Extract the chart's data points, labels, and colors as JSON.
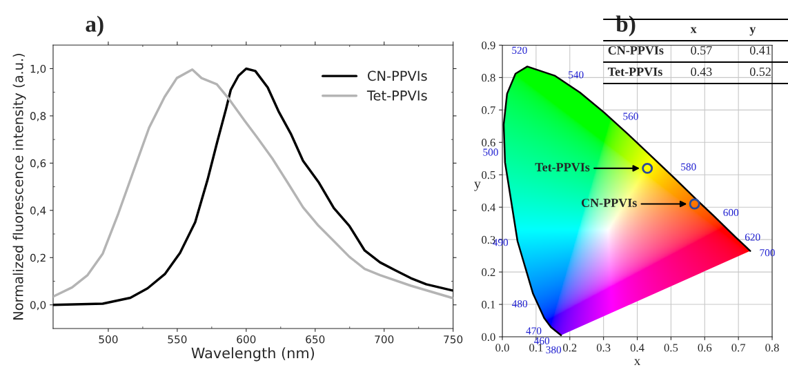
{
  "chart_data": [
    {
      "type": "line",
      "title": "a)",
      "xlabel": "Wavelength (nm)",
      "ylabel": "Normalized fluorescence intensity (a.u.)",
      "xlim": [
        460,
        750
      ],
      "ylim": [
        -0.1,
        1.1
      ],
      "xticks": [
        500,
        550,
        600,
        650,
        700,
        750
      ],
      "yticks": [
        {
          "value": 0,
          "label": "0,0"
        },
        {
          "value": 0.2,
          "label": "0,2"
        },
        {
          "value": 0.4,
          "label": "0,4"
        },
        {
          "value": 0.6,
          "label": "0,6"
        },
        {
          "value": 0.8,
          "label": "0,8"
        },
        {
          "value": 1.0,
          "label": "1,0"
        }
      ],
      "grid": false,
      "legend": "top right",
      "series": [
        {
          "name": "CN-PPVIs",
          "color": "#000000",
          "x": [
            460,
            496,
            516,
            528.5,
            541,
            552,
            563,
            572,
            579,
            585.4,
            588.8,
            594.4,
            600,
            606.6,
            615.6,
            623.4,
            632.3,
            641.2,
            652.4,
            663.5,
            674.7,
            685.9,
            697,
            708.2,
            719.4,
            730.5,
            749.5
          ],
          "values": [
            0.0,
            0.005,
            0.03,
            0.07,
            0.13,
            0.22,
            0.35,
            0.53,
            0.69,
            0.83,
            0.91,
            0.97,
            1.0,
            0.99,
            0.92,
            0.82,
            0.725,
            0.61,
            0.52,
            0.41,
            0.335,
            0.23,
            0.18,
            0.146,
            0.113,
            0.087,
            0.061
          ]
        },
        {
          "name": "Tet-PPVIs",
          "color": "#b4b4b4",
          "x": [
            460,
            473.8,
            485,
            496,
            507.3,
            518.5,
            529.6,
            540.8,
            549.7,
            560.9,
            567.6,
            578.7,
            587.7,
            598.8,
            607.8,
            618.9,
            630.1,
            641.2,
            652.4,
            663.5,
            674.7,
            685.9,
            697,
            719.4,
            749.5
          ],
          "values": [
            0.035,
            0.074,
            0.126,
            0.217,
            0.387,
            0.57,
            0.75,
            0.88,
            0.96,
            0.996,
            0.96,
            0.934,
            0.87,
            0.78,
            0.71,
            0.62,
            0.517,
            0.413,
            0.335,
            0.27,
            0.204,
            0.152,
            0.126,
            0.081,
            0.029
          ]
        }
      ]
    },
    {
      "type": "scatter",
      "title": "b)",
      "xlabel": "x",
      "ylabel": "y",
      "xlim": [
        0,
        0.8
      ],
      "ylim": [
        0,
        0.9
      ],
      "xticks": [
        {
          "value": 0,
          "label": "0.0"
        },
        0.1,
        0.2,
        0.3,
        0.4,
        0.5,
        0.6,
        0.7,
        0.8
      ],
      "yticks": [
        {
          "value": 0,
          "label": "0.0"
        },
        0.1,
        0.2,
        0.3,
        0.4,
        0.5,
        0.6,
        0.7,
        0.8,
        0.9
      ],
      "grid": true,
      "legend": false,
      "series": [
        {
          "type": "line",
          "color": "#000000",
          "x": [
            0.174,
            0.144,
            0.124,
            0.091,
            0.045,
            0.008,
            0.004,
            0.014,
            0.039,
            0.074,
            0.155,
            0.23,
            0.302,
            0.373,
            0.444,
            0.513,
            0.575,
            0.627,
            0.691,
            0.719,
            0.735
          ],
          "values": [
            0.005,
            0.03,
            0.058,
            0.133,
            0.295,
            0.538,
            0.655,
            0.75,
            0.812,
            0.834,
            0.806,
            0.754,
            0.692,
            0.625,
            0.555,
            0.487,
            0.424,
            0.373,
            0.308,
            0.281,
            0.265
          ]
        },
        {
          "type": "scatter",
          "name": "Tet-PPVIs",
          "color": "#2a4a9a",
          "marker": "circle",
          "x": [
            0.43
          ],
          "values": [
            0.52
          ]
        },
        {
          "type": "scatter",
          "name": "CN-PPVIs",
          "color": "#2a4a9a",
          "marker": "circle",
          "x": [
            0.57
          ],
          "values": [
            0.41
          ]
        }
      ],
      "annotations": [
        {
          "text": "380",
          "x": 0.174,
          "y": 0.005
        },
        {
          "text": "460",
          "x": 0.144,
          "y": 0.03
        },
        {
          "text": "470",
          "x": 0.124,
          "y": 0.058
        },
        {
          "text": "480",
          "x": 0.091,
          "y": 0.133
        },
        {
          "text": "490",
          "x": 0.045,
          "y": 0.295
        },
        {
          "text": "500",
          "x": 0.008,
          "y": 0.538
        },
        {
          "text": "520",
          "x": 0.074,
          "y": 0.834
        },
        {
          "text": "540",
          "x": 0.23,
          "y": 0.754
        },
        {
          "text": "560",
          "x": 0.373,
          "y": 0.625
        },
        {
          "text": "580",
          "x": 0.513,
          "y": 0.487
        },
        {
          "text": "600",
          "x": 0.627,
          "y": 0.373
        },
        {
          "text": "620",
          "x": 0.691,
          "y": 0.308
        },
        {
          "text": "700",
          "x": 0.735,
          "y": 0.265
        },
        "x",
        "y",
        "CN-PPVIs",
        "0.57",
        "0.41",
        "Tet-PPVIs",
        "0.43",
        "0.52"
      ]
    }
  ]
}
